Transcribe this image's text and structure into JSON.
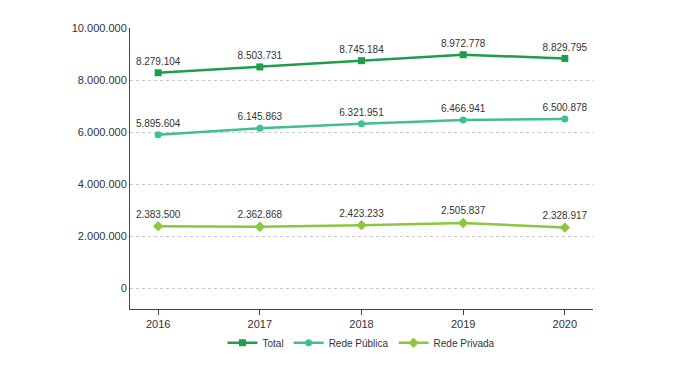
{
  "chart_data": {
    "type": "line",
    "categories": [
      "2016",
      "2017",
      "2018",
      "2019",
      "2020"
    ],
    "series": [
      {
        "name": "Total",
        "color": "#1f9d4c",
        "marker": "square",
        "line_style": "solid",
        "values": [
          8279104,
          8503731,
          8745184,
          8972778,
          8829795
        ],
        "value_labels": [
          "8.279.104",
          "8.503.731",
          "8.745.184",
          "8.972.778",
          "8.829.795"
        ]
      },
      {
        "name": "Rede Pública",
        "color": "#3fbf92",
        "marker": "circle",
        "line_style": "solid",
        "values": [
          5895604,
          6145863,
          6321951,
          6466941,
          6500878
        ],
        "value_labels": [
          "5.895.604",
          "6.145.863",
          "6.321.951",
          "6.466.941",
          "6.500.878"
        ]
      },
      {
        "name": "Rede Privada",
        "color": "#8dc63f",
        "marker": "diamond",
        "line_style": "solid",
        "values": [
          2383500,
          2362868,
          2423233,
          2505837,
          2328917
        ],
        "value_labels": [
          "2.383.500",
          "2.362.868",
          "2.423.233",
          "2.505.837",
          "2.328.917"
        ]
      }
    ],
    "ylim": [
      -800000,
      10000000
    ],
    "yticks": [
      0,
      {
        "value": 2000000,
        "label": "2.000.000"
      },
      {
        "value": 4000000,
        "label": "4.000.000"
      },
      {
        "value": 6000000,
        "label": "6.000.000"
      },
      {
        "value": 8000000,
        "label": "8.000.000"
      },
      {
        "value": 10000000,
        "label": "10.000.000"
      }
    ],
    "grid": true,
    "data_labels": true,
    "legend": "bottom"
  }
}
